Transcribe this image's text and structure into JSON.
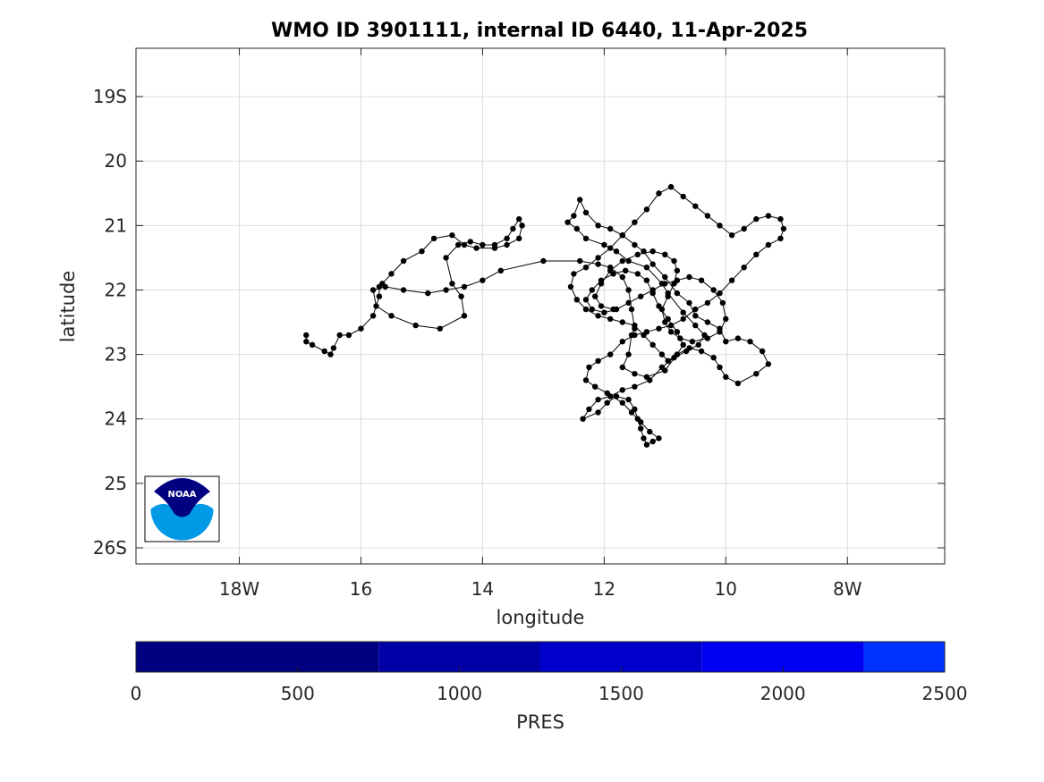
{
  "title": "WMO ID 3901111, internal ID 6440, 11-Apr-2025",
  "chart_data": {
    "type": "scatter",
    "subtype": "float-trajectory-map",
    "title": "WMO ID 3901111, internal ID 6440, 11-Apr-2025",
    "xlabel": "longitude",
    "ylabel": "latitude",
    "xlim": [
      -19.7,
      -6.4
    ],
    "ylim": [
      -26.25,
      -18.25
    ],
    "y_reversed": true,
    "grid": true,
    "x_ticks": [
      {
        "value": -18,
        "label": "18W"
      },
      {
        "value": -16,
        "label": "16"
      },
      {
        "value": -14,
        "label": "14"
      },
      {
        "value": -12,
        "label": "12"
      },
      {
        "value": -10,
        "label": "10"
      },
      {
        "value": -8,
        "label": "8W"
      }
    ],
    "y_ticks": [
      {
        "value": -19,
        "label": "19S"
      },
      {
        "value": -20,
        "label": "20"
      },
      {
        "value": -21,
        "label": "21"
      },
      {
        "value": -22,
        "label": "22"
      },
      {
        "value": -23,
        "label": "23"
      },
      {
        "value": -24,
        "label": "24"
      },
      {
        "value": -25,
        "label": "25"
      },
      {
        "value": -26,
        "label": "26S"
      }
    ],
    "track": [
      [
        -16.9,
        -22.7
      ],
      [
        -16.9,
        -22.8
      ],
      [
        -16.8,
        -22.85
      ],
      [
        -16.6,
        -22.95
      ],
      [
        -16.5,
        -23.0
      ],
      [
        -16.45,
        -22.9
      ],
      [
        -16.35,
        -22.7
      ],
      [
        -16.2,
        -22.7
      ],
      [
        -16.0,
        -22.6
      ],
      [
        -15.8,
        -22.4
      ],
      [
        -15.7,
        -22.1
      ],
      [
        -15.7,
        -21.95
      ],
      [
        -15.65,
        -21.9
      ],
      [
        -15.5,
        -21.75
      ],
      [
        -15.3,
        -21.55
      ],
      [
        -15.0,
        -21.4
      ],
      [
        -14.8,
        -21.2
      ],
      [
        -14.5,
        -21.15
      ],
      [
        -14.3,
        -21.3
      ],
      [
        -14.1,
        -21.35
      ],
      [
        -13.8,
        -21.35
      ],
      [
        -13.6,
        -21.3
      ],
      [
        -13.4,
        -21.2
      ],
      [
        -13.35,
        -21.0
      ],
      [
        -13.4,
        -20.9
      ],
      [
        -13.5,
        -21.05
      ],
      [
        -13.6,
        -21.2
      ],
      [
        -13.8,
        -21.3
      ],
      [
        -14.0,
        -21.3
      ],
      [
        -14.2,
        -21.25
      ],
      [
        -14.4,
        -21.3
      ],
      [
        -14.6,
        -21.5
      ],
      [
        -14.5,
        -21.9
      ],
      [
        -14.35,
        -22.1
      ],
      [
        -14.3,
        -22.4
      ],
      [
        -14.7,
        -22.6
      ],
      [
        -15.1,
        -22.55
      ],
      [
        -15.5,
        -22.4
      ],
      [
        -15.75,
        -22.25
      ],
      [
        -15.8,
        -22.0
      ],
      [
        -15.6,
        -21.95
      ],
      [
        -15.3,
        -22.0
      ],
      [
        -14.9,
        -22.05
      ],
      [
        -14.6,
        -22.0
      ],
      [
        -14.3,
        -21.95
      ],
      [
        -14.0,
        -21.85
      ],
      [
        -13.7,
        -21.7
      ],
      [
        -13.0,
        -21.55
      ],
      [
        -12.4,
        -21.55
      ],
      [
        -12.1,
        -21.6
      ],
      [
        -11.9,
        -21.65
      ],
      [
        -11.7,
        -21.8
      ],
      [
        -11.6,
        -22.0
      ],
      [
        -11.55,
        -22.3
      ],
      [
        -11.5,
        -22.6
      ],
      [
        -11.55,
        -22.7
      ],
      [
        -11.6,
        -23.0
      ],
      [
        -11.7,
        -23.2
      ],
      [
        -11.5,
        -23.3
      ],
      [
        -11.3,
        -23.35
      ],
      [
        -11.0,
        -23.25
      ],
      [
        -10.8,
        -23.0
      ],
      [
        -10.6,
        -22.9
      ],
      [
        -10.4,
        -22.95
      ],
      [
        -10.2,
        -23.05
      ],
      [
        -10.1,
        -23.2
      ],
      [
        -10.0,
        -23.35
      ],
      [
        -9.8,
        -23.45
      ],
      [
        -9.5,
        -23.3
      ],
      [
        -9.3,
        -23.15
      ],
      [
        -9.4,
        -22.95
      ],
      [
        -9.6,
        -22.8
      ],
      [
        -9.8,
        -22.75
      ],
      [
        -10.0,
        -22.8
      ],
      [
        -10.1,
        -22.6
      ],
      [
        -10.3,
        -22.5
      ],
      [
        -10.5,
        -22.4
      ],
      [
        -10.6,
        -22.2
      ],
      [
        -10.8,
        -22.05
      ],
      [
        -11.0,
        -21.8
      ],
      [
        -11.2,
        -21.6
      ],
      [
        -11.35,
        -21.4
      ],
      [
        -11.5,
        -21.3
      ],
      [
        -11.7,
        -21.15
      ],
      [
        -11.9,
        -21.05
      ],
      [
        -12.1,
        -21.0
      ],
      [
        -12.3,
        -20.8
      ],
      [
        -12.4,
        -20.6
      ],
      [
        -12.5,
        -20.85
      ],
      [
        -12.6,
        -20.95
      ],
      [
        -12.45,
        -21.05
      ],
      [
        -12.3,
        -21.2
      ],
      [
        -12.0,
        -21.3
      ],
      [
        -11.8,
        -21.4
      ],
      [
        -11.6,
        -21.55
      ],
      [
        -11.3,
        -21.65
      ],
      [
        -11.05,
        -21.9
      ],
      [
        -10.95,
        -22.05
      ],
      [
        -10.7,
        -22.35
      ],
      [
        -10.5,
        -22.55
      ],
      [
        -10.35,
        -22.7
      ],
      [
        -10.45,
        -22.85
      ],
      [
        -10.65,
        -22.95
      ],
      [
        -10.85,
        -23.05
      ],
      [
        -11.05,
        -23.2
      ],
      [
        -11.25,
        -23.4
      ],
      [
        -11.5,
        -23.5
      ],
      [
        -11.7,
        -23.55
      ],
      [
        -11.9,
        -23.65
      ],
      [
        -12.1,
        -23.7
      ],
      [
        -12.25,
        -23.85
      ],
      [
        -12.35,
        -24.0
      ],
      [
        -12.1,
        -23.9
      ],
      [
        -11.95,
        -23.75
      ],
      [
        -11.8,
        -23.65
      ],
      [
        -11.6,
        -23.7
      ],
      [
        -11.5,
        -23.85
      ],
      [
        -11.45,
        -24.0
      ],
      [
        -11.4,
        -24.15
      ],
      [
        -11.35,
        -24.3
      ],
      [
        -11.3,
        -24.4
      ],
      [
        -11.2,
        -24.35
      ],
      [
        -11.1,
        -24.3
      ],
      [
        -11.25,
        -24.2
      ],
      [
        -11.4,
        -24.05
      ],
      [
        -11.55,
        -23.9
      ],
      [
        -11.7,
        -23.75
      ],
      [
        -11.95,
        -23.6
      ],
      [
        -12.15,
        -23.5
      ],
      [
        -12.3,
        -23.4
      ],
      [
        -12.25,
        -23.2
      ],
      [
        -12.1,
        -23.1
      ],
      [
        -11.9,
        -23.0
      ],
      [
        -11.7,
        -22.8
      ],
      [
        -11.5,
        -22.7
      ],
      [
        -11.3,
        -22.65
      ],
      [
        -11.1,
        -22.6
      ],
      [
        -10.9,
        -22.55
      ],
      [
        -10.7,
        -22.45
      ],
      [
        -10.5,
        -22.3
      ],
      [
        -10.3,
        -22.2
      ],
      [
        -10.1,
        -22.05
      ],
      [
        -9.9,
        -21.85
      ],
      [
        -9.7,
        -21.65
      ],
      [
        -9.5,
        -21.45
      ],
      [
        -9.3,
        -21.3
      ],
      [
        -9.1,
        -21.2
      ],
      [
        -9.05,
        -21.05
      ],
      [
        -9.1,
        -20.9
      ],
      [
        -9.3,
        -20.85
      ],
      [
        -9.5,
        -20.9
      ],
      [
        -9.7,
        -21.05
      ],
      [
        -9.9,
        -21.15
      ],
      [
        -10.1,
        -21.0
      ],
      [
        -10.3,
        -20.85
      ],
      [
        -10.5,
        -20.7
      ],
      [
        -10.7,
        -20.55
      ],
      [
        -10.9,
        -20.4
      ],
      [
        -11.1,
        -20.5
      ],
      [
        -11.3,
        -20.75
      ],
      [
        -11.5,
        -20.95
      ],
      [
        -11.7,
        -21.15
      ],
      [
        -11.9,
        -21.35
      ],
      [
        -12.1,
        -21.5
      ],
      [
        -12.3,
        -21.65
      ],
      [
        -12.5,
        -21.75
      ],
      [
        -12.55,
        -21.95
      ],
      [
        -12.45,
        -22.15
      ],
      [
        -12.3,
        -22.3
      ],
      [
        -12.1,
        -22.4
      ],
      [
        -11.9,
        -22.45
      ],
      [
        -11.7,
        -22.5
      ],
      [
        -11.5,
        -22.55
      ],
      [
        -11.35,
        -22.7
      ],
      [
        -11.2,
        -22.85
      ],
      [
        -11.05,
        -23.0
      ],
      [
        -10.95,
        -23.1
      ],
      [
        -10.8,
        -23.0
      ],
      [
        -10.7,
        -22.85
      ],
      [
        -10.8,
        -22.65
      ],
      [
        -10.95,
        -22.45
      ],
      [
        -11.1,
        -22.25
      ],
      [
        -11.2,
        -22.05
      ],
      [
        -11.3,
        -21.85
      ],
      [
        -11.45,
        -21.75
      ],
      [
        -11.65,
        -21.7
      ],
      [
        -11.85,
        -21.75
      ],
      [
        -12.05,
        -21.85
      ],
      [
        -12.2,
        -22.0
      ],
      [
        -12.3,
        -22.15
      ],
      [
        -12.2,
        -22.3
      ],
      [
        -12.0,
        -22.35
      ],
      [
        -11.8,
        -22.3
      ],
      [
        -11.6,
        -22.2
      ],
      [
        -11.4,
        -22.1
      ],
      [
        -11.2,
        -22.0
      ],
      [
        -11.0,
        -21.9
      ],
      [
        -10.8,
        -21.85
      ],
      [
        -10.6,
        -21.8
      ],
      [
        -10.4,
        -21.85
      ],
      [
        -10.2,
        -22.0
      ],
      [
        -10.05,
        -22.2
      ],
      [
        -10.0,
        -22.45
      ],
      [
        -10.1,
        -22.65
      ],
      [
        -10.3,
        -22.75
      ],
      [
        -10.55,
        -22.8
      ],
      [
        -10.75,
        -22.75
      ],
      [
        -10.9,
        -22.65
      ],
      [
        -11.0,
        -22.5
      ],
      [
        -11.05,
        -22.3
      ],
      [
        -10.95,
        -22.1
      ],
      [
        -10.85,
        -21.9
      ],
      [
        -10.8,
        -21.7
      ],
      [
        -10.85,
        -21.55
      ],
      [
        -11.0,
        -21.45
      ],
      [
        -11.2,
        -21.4
      ],
      [
        -11.45,
        -21.45
      ],
      [
        -11.7,
        -21.55
      ],
      [
        -11.9,
        -21.7
      ],
      [
        -12.05,
        -21.9
      ],
      [
        -12.15,
        -22.1
      ],
      [
        -12.05,
        -22.25
      ],
      [
        -11.85,
        -22.3
      ]
    ],
    "colorbar": {
      "label": "PRES",
      "range": [
        0,
        2500
      ],
      "ticks": [
        0,
        500,
        1000,
        1500,
        2000,
        2500
      ],
      "bands": [
        {
          "from": 0,
          "to": 750,
          "color": "#000080"
        },
        {
          "from": 750,
          "to": 1250,
          "color": "#0000a6"
        },
        {
          "from": 1250,
          "to": 1750,
          "color": "#0000cc"
        },
        {
          "from": 1750,
          "to": 2250,
          "color": "#0000f2"
        },
        {
          "from": 2250,
          "to": 2500,
          "color": "#0033ff"
        }
      ]
    }
  },
  "logo": {
    "text": "NOAA",
    "icon": "noaa-logo-icon"
  }
}
